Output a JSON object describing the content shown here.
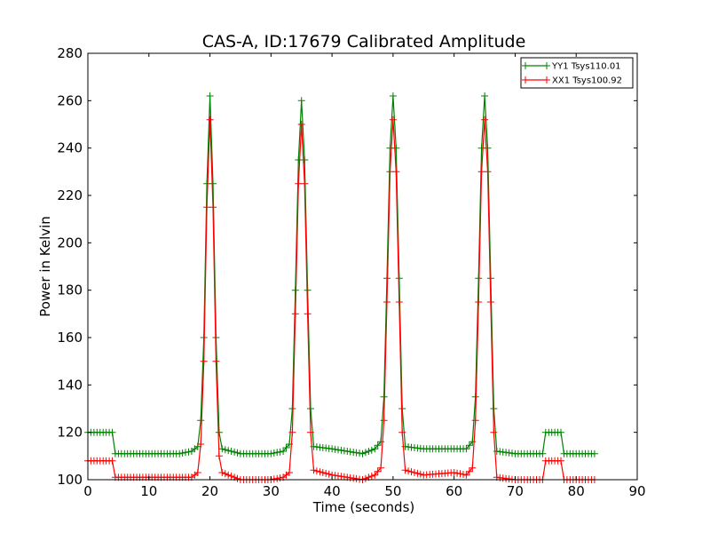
{
  "chart_data": {
    "type": "line",
    "title": "CAS-A, ID:17679 Calibrated Amplitude",
    "xlabel": "Time (seconds)",
    "ylabel": "Power in Kelvin",
    "xlim": [
      0,
      90
    ],
    "ylim": [
      100,
      280
    ],
    "xticks": [
      0,
      10,
      20,
      30,
      40,
      50,
      60,
      70,
      80,
      90
    ],
    "yticks": [
      100,
      120,
      140,
      160,
      180,
      200,
      220,
      240,
      260,
      280
    ],
    "grid": false,
    "legend_position": "top-right",
    "marker": "+",
    "series": [
      {
        "name": "YY1 Tsys110.01",
        "color": "#008000",
        "x": [
          0,
          4,
          4.5,
          15,
          17,
          18,
          18.5,
          19,
          19.5,
          20,
          20.5,
          21,
          21.5,
          22,
          25,
          30,
          32,
          33,
          33.5,
          34,
          34.5,
          35,
          35.5,
          36,
          36.5,
          37,
          40,
          45,
          47,
          48,
          48.5,
          49,
          49.5,
          50,
          50.5,
          51,
          51.5,
          52,
          55,
          60,
          62,
          63,
          63.5,
          64,
          64.5,
          65,
          65.5,
          66,
          66.5,
          67,
          70,
          74.5,
          75,
          77.5,
          78,
          83
        ],
        "y": [
          120,
          120,
          111,
          111,
          112,
          114,
          125,
          160,
          225,
          262,
          225,
          160,
          120,
          113,
          111,
          111,
          112,
          115,
          130,
          180,
          235,
          260,
          235,
          180,
          130,
          114,
          113,
          111,
          113,
          116,
          135,
          185,
          240,
          262,
          240,
          185,
          130,
          114,
          113,
          113,
          113,
          116,
          135,
          185,
          240,
          262,
          240,
          185,
          130,
          112,
          111,
          111,
          120,
          120,
          111,
          111
        ]
      },
      {
        "name": "XX1 Tsys100.92",
        "color": "#ff0000",
        "x": [
          0,
          4,
          4.5,
          15,
          17,
          18,
          18.5,
          19,
          19.5,
          20,
          20.5,
          21,
          21.5,
          22,
          25,
          30,
          32,
          33,
          33.5,
          34,
          34.5,
          35,
          35.5,
          36,
          36.5,
          37,
          40,
          45,
          47,
          48,
          48.5,
          49,
          49.5,
          50,
          50.5,
          51,
          51.5,
          52,
          55,
          60,
          62,
          63,
          63.5,
          64,
          64.5,
          65,
          65.5,
          66,
          66.5,
          67,
          70,
          74.5,
          75,
          77.5,
          78,
          83
        ],
        "y": [
          108,
          108,
          101,
          101,
          101,
          103,
          115,
          150,
          215,
          252,
          215,
          150,
          110,
          103,
          100,
          100,
          101,
          103,
          120,
          170,
          225,
          250,
          225,
          170,
          120,
          104,
          102,
          100,
          102,
          105,
          125,
          175,
          230,
          252,
          230,
          175,
          120,
          104,
          102,
          103,
          102,
          105,
          125,
          175,
          230,
          252,
          230,
          175,
          120,
          101,
          100,
          100,
          108,
          108,
          100,
          100
        ]
      }
    ]
  }
}
